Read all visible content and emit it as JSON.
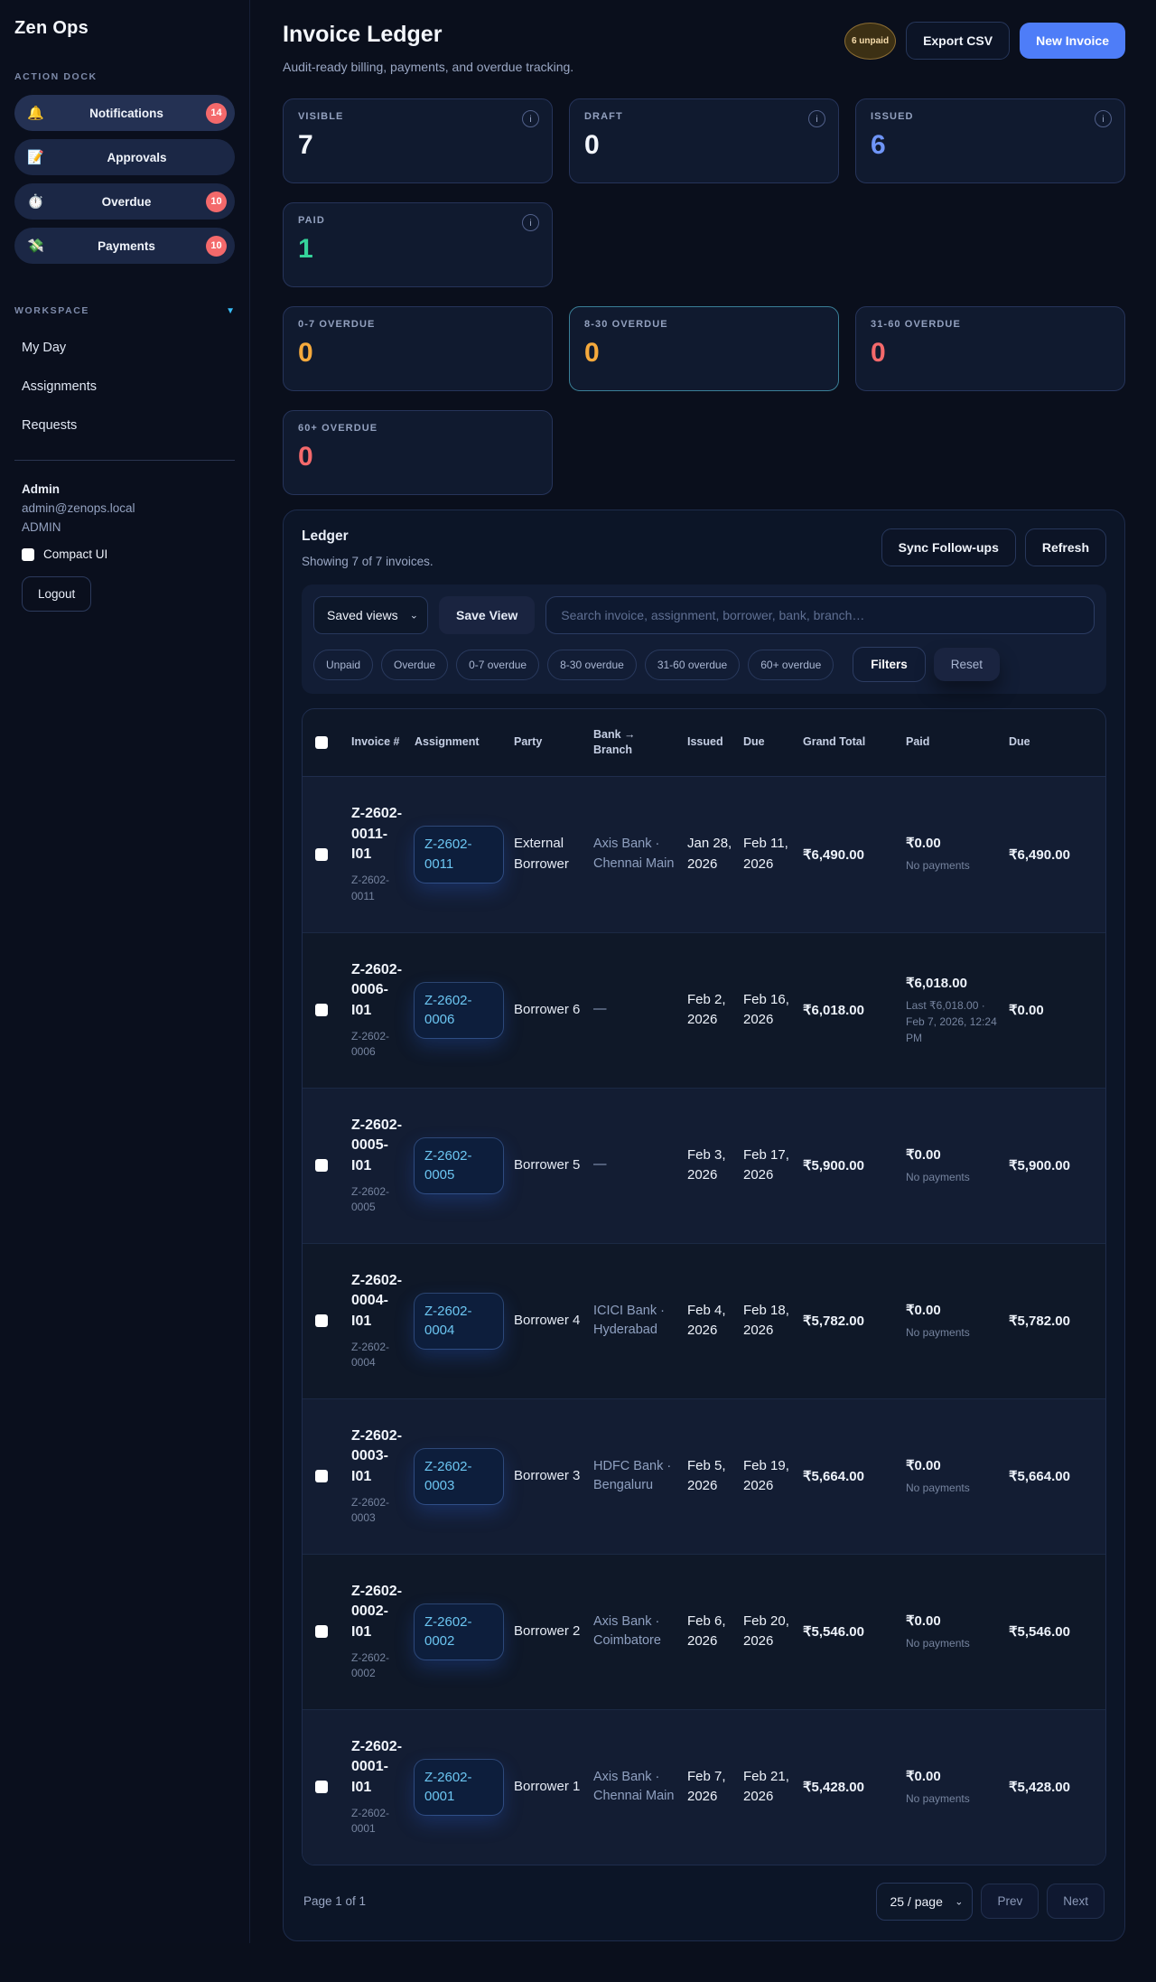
{
  "app": {
    "brand": "Zen Ops"
  },
  "icons": {
    "info": "i",
    "select_caret": "⌄",
    "workspace_caret": "▼"
  },
  "colors": {
    "accent_blue": "#4e7df8",
    "link_cyan": "#6cc6f2",
    "paid_green": "#35d39a",
    "amber": "#f5a93c",
    "red": "#f4696b",
    "badge_red": "#f4696b"
  },
  "sidebar": {
    "action_dock_label": "ACTION DOCK",
    "dock_items": [
      {
        "label": "Notifications",
        "emoji": "🔔",
        "badge": "14"
      },
      {
        "label": "Approvals",
        "emoji": "📝",
        "badge": ""
      },
      {
        "label": "Overdue",
        "emoji": "⏱️",
        "badge": "10"
      },
      {
        "label": "Payments",
        "emoji": "💸",
        "badge": "10"
      }
    ],
    "workspace_label": "WORKSPACE",
    "workspace_items": [
      "My Day",
      "Assignments",
      "Requests"
    ],
    "user": {
      "name": "Admin",
      "email": "admin@zenops.local",
      "role": "ADMIN"
    },
    "compact_ui_label": "Compact UI",
    "logout_label": "Logout"
  },
  "header": {
    "title": "Invoice Ledger",
    "subtitle": "Audit-ready billing, payments, and overdue tracking.",
    "unpaid_badge": "6 unpaid",
    "export_csv_label": "Export CSV",
    "new_invoice_label": "New Invoice"
  },
  "stats": {
    "cards": [
      {
        "label": "VISIBLE",
        "value": "7"
      },
      {
        "label": "DRAFT",
        "value": "0"
      },
      {
        "label": "ISSUED",
        "value": "6"
      },
      {
        "label": "PAID",
        "value": "1"
      },
      {
        "label": "0-7 OVERDUE",
        "value": "0"
      },
      {
        "label": "8-30 OVERDUE",
        "value": "0"
      },
      {
        "label": "31-60 OVERDUE",
        "value": "0"
      },
      {
        "label": "60+ OVERDUE",
        "value": "0"
      }
    ]
  },
  "ledger": {
    "title": "Ledger",
    "summary": "Showing 7 of 7 invoices.",
    "sync_label": "Sync Follow-ups",
    "refresh_label": "Refresh",
    "saved_views_label": "Saved views",
    "save_view_label": "Save View",
    "search_placeholder": "Search invoice, assignment, borrower, bank, branch…",
    "chips": [
      "Unpaid",
      "Overdue",
      "0-7 overdue",
      "8-30 overdue",
      "31-60 overdue",
      "60+ overdue"
    ],
    "filters_label": "Filters",
    "reset_label": "Reset",
    "columns": [
      "Invoice #",
      "Assignment",
      "Party",
      "Bank → Branch",
      "Issued",
      "Due",
      "Grand Total",
      "Paid",
      "Due"
    ],
    "rows": [
      {
        "invoice_id": "Z-2602-0011-I01",
        "invoice_sub": "Z-2602-0011",
        "assignment": "Z-2602-0011",
        "party": "External Borrower",
        "bank": "Axis Bank · Chennai Main",
        "issued": "Jan 28, 2026",
        "due": "Feb 11, 2026",
        "grand_total": "₹6,490.00",
        "paid": "₹0.00",
        "paid_note": "No payments",
        "due_amount": "₹6,490.00"
      },
      {
        "invoice_id": "Z-2602-0006-I01",
        "invoice_sub": "Z-2602-0006",
        "assignment": "Z-2602-0006",
        "party": "Borrower 6",
        "bank": "—",
        "issued": "Feb 2, 2026",
        "due": "Feb 16, 2026",
        "grand_total": "₹6,018.00",
        "paid": "₹6,018.00",
        "paid_note": "Last ₹6,018.00 · Feb 7, 2026, 12:24 PM",
        "due_amount": "₹0.00"
      },
      {
        "invoice_id": "Z-2602-0005-I01",
        "invoice_sub": "Z-2602-0005",
        "assignment": "Z-2602-0005",
        "party": "Borrower 5",
        "bank": "—",
        "issued": "Feb 3, 2026",
        "due": "Feb 17, 2026",
        "grand_total": "₹5,900.00",
        "paid": "₹0.00",
        "paid_note": "No payments",
        "due_amount": "₹5,900.00"
      },
      {
        "invoice_id": "Z-2602-0004-I01",
        "invoice_sub": "Z-2602-0004",
        "assignment": "Z-2602-0004",
        "party": "Borrower 4",
        "bank": "ICICI Bank · Hyderabad",
        "issued": "Feb 4, 2026",
        "due": "Feb 18, 2026",
        "grand_total": "₹5,782.00",
        "paid": "₹0.00",
        "paid_note": "No payments",
        "due_amount": "₹5,782.00"
      },
      {
        "invoice_id": "Z-2602-0003-I01",
        "invoice_sub": "Z-2602-0003",
        "assignment": "Z-2602-0003",
        "party": "Borrower 3",
        "bank": "HDFC Bank · Bengaluru",
        "issued": "Feb 5, 2026",
        "due": "Feb 19, 2026",
        "grand_total": "₹5,664.00",
        "paid": "₹0.00",
        "paid_note": "No payments",
        "due_amount": "₹5,664.00"
      },
      {
        "invoice_id": "Z-2602-0002-I01",
        "invoice_sub": "Z-2602-0002",
        "assignment": "Z-2602-0002",
        "party": "Borrower 2",
        "bank": "Axis Bank · Coimbatore",
        "issued": "Feb 6, 2026",
        "due": "Feb 20, 2026",
        "grand_total": "₹5,546.00",
        "paid": "₹0.00",
        "paid_note": "No payments",
        "due_amount": "₹5,546.00"
      },
      {
        "invoice_id": "Z-2602-0001-I01",
        "invoice_sub": "Z-2602-0001",
        "assignment": "Z-2602-0001",
        "party": "Borrower 1",
        "bank": "Axis Bank · Chennai Main",
        "issued": "Feb 7, 2026",
        "due": "Feb 21, 2026",
        "grand_total": "₹5,428.00",
        "paid": "₹0.00",
        "paid_note": "No payments",
        "due_amount": "₹5,428.00"
      }
    ],
    "footer": {
      "page_label": "Page 1 of 1",
      "page_size": "25 / page",
      "prev_label": "Prev",
      "next_label": "Next"
    }
  }
}
